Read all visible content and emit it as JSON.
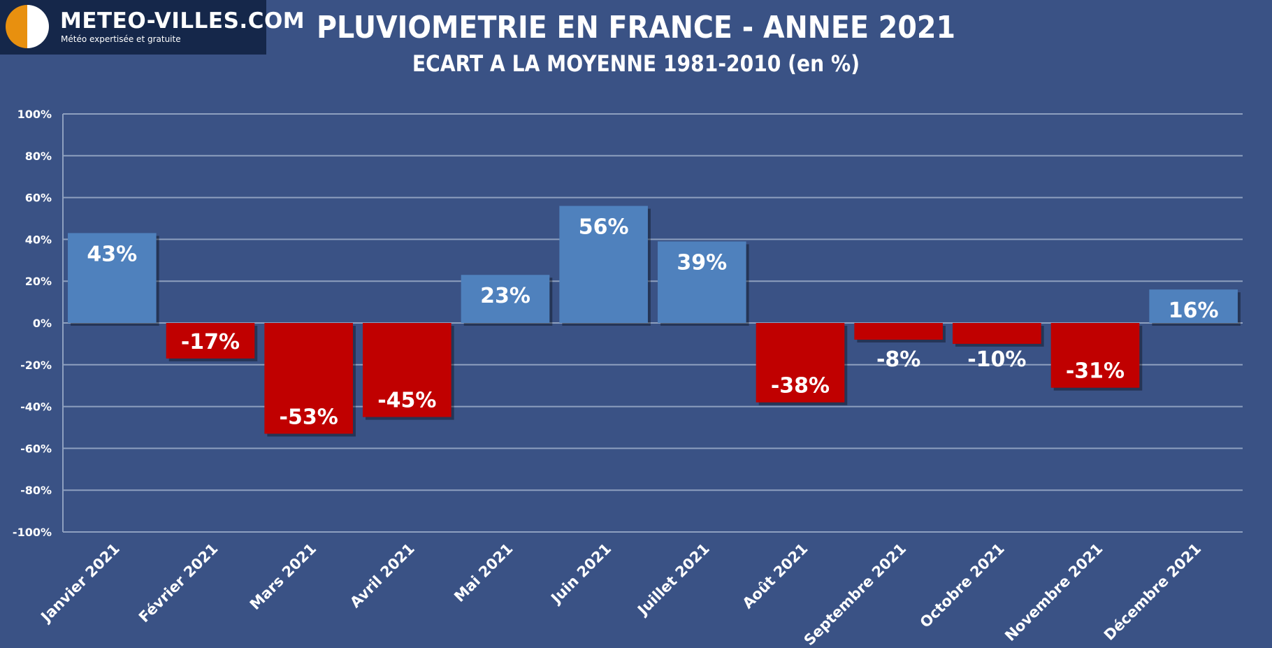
{
  "logo": {
    "title": "METEO-VILLES.COM",
    "tagline": "Météo expertisée et gratuite"
  },
  "colors": {
    "background": "#3a5285",
    "positive": "#4f81bd",
    "negative": "#c00000",
    "grid": "#8ea0bf",
    "text": "#ffffff"
  },
  "chart_data": {
    "type": "bar",
    "title": "PLUVIOMETRIE EN FRANCE - ANNEE 2021",
    "subtitle": "ECART A LA MOYENNE 1981-2010 (en %)",
    "categories": [
      "Janvier 2021",
      "Février 2021",
      "Mars 2021",
      "Avril 2021",
      "Mai 2021",
      "Juin 2021",
      "Juillet 2021",
      "Août 2021",
      "Septembre 2021",
      "Octobre 2021",
      "Novembre 2021",
      "Décembre 2021"
    ],
    "values": [
      43,
      -17,
      -53,
      -45,
      23,
      56,
      39,
      -38,
      -8,
      -10,
      -31,
      16
    ],
    "value_labels": [
      "43%",
      "-17%",
      "-53%",
      "-45%",
      "23%",
      "56%",
      "39%",
      "-38%",
      "-8%",
      "-10%",
      "-31%",
      "16%"
    ],
    "ylim": [
      -100,
      100
    ],
    "yticks": [
      100,
      80,
      60,
      40,
      20,
      0,
      -20,
      -40,
      -60,
      -80,
      -100
    ],
    "ytick_labels": [
      "100%",
      "80%",
      "60%",
      "40%",
      "20%",
      "0%",
      "-20%",
      "-40%",
      "-60%",
      "-80%",
      "-100%"
    ],
    "xlabel": "",
    "ylabel": "",
    "grid": true,
    "legend": "none"
  }
}
